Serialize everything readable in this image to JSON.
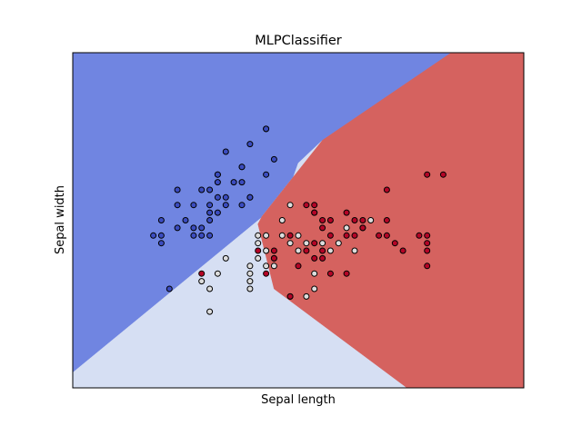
{
  "chart_data": {
    "type": "scatter",
    "title": "MLPClassifier",
    "xlabel": "Sepal length",
    "ylabel": "Sepal width",
    "xlim": [
      3.3,
      8.9
    ],
    "ylim": [
      1.0,
      5.4
    ],
    "xticks": "hidden",
    "yticks": "hidden",
    "grid": false,
    "legend": "none",
    "colors": {
      "region_class_0": "#7085e1",
      "region_class_1": "#d6dff3",
      "region_class_2": "#d5625f",
      "point_class_0": "#3b4cc0",
      "point_class_1": "#dddddd",
      "point_class_2": "#b40426",
      "point_edge": "#000000"
    },
    "decision_regions": [
      {
        "class": 0,
        "polygon": [
          [
            3.3,
            1.2
          ],
          [
            3.3,
            5.4
          ],
          [
            8.0,
            5.4
          ],
          [
            6.4,
            4.25
          ],
          [
            6.1,
            3.95
          ],
          [
            5.95,
            3.5
          ]
        ]
      },
      {
        "class": 1,
        "polygon": [
          [
            3.3,
            1.0
          ],
          [
            3.3,
            1.2
          ],
          [
            5.95,
            3.5
          ],
          [
            6.1,
            3.95
          ],
          [
            6.4,
            4.25
          ],
          [
            5.65,
            3.25
          ],
          [
            5.6,
            3.15
          ],
          [
            5.8,
            2.3
          ],
          [
            7.45,
            1.0
          ]
        ]
      },
      {
        "class": 2,
        "polygon": [
          [
            5.6,
            3.15
          ],
          [
            5.65,
            3.25
          ],
          [
            6.4,
            4.25
          ],
          [
            8.0,
            5.4
          ],
          [
            8.9,
            5.4
          ],
          [
            8.9,
            1.0
          ],
          [
            7.45,
            1.0
          ],
          [
            5.8,
            2.3
          ]
        ]
      }
    ],
    "series": [
      {
        "class": 0,
        "points": [
          [
            4.3,
            3.0
          ],
          [
            4.4,
            3.2
          ],
          [
            4.4,
            2.9
          ],
          [
            4.5,
            2.3
          ],
          [
            4.6,
            3.1
          ],
          [
            4.6,
            3.4
          ],
          [
            4.6,
            3.6
          ],
          [
            4.7,
            3.2
          ],
          [
            4.8,
            3.4
          ],
          [
            4.8,
            3.0
          ],
          [
            4.8,
            3.1
          ],
          [
            4.9,
            3.0
          ],
          [
            4.9,
            3.1
          ],
          [
            5.0,
            3.6
          ],
          [
            5.0,
            3.4
          ],
          [
            5.0,
            3.0
          ],
          [
            5.0,
            3.2
          ],
          [
            5.0,
            3.3
          ],
          [
            5.1,
            3.5
          ],
          [
            5.1,
            3.8
          ],
          [
            5.1,
            3.7
          ],
          [
            5.1,
            3.3
          ],
          [
            5.2,
            3.5
          ],
          [
            5.2,
            3.4
          ],
          [
            5.2,
            4.1
          ],
          [
            5.3,
            3.7
          ],
          [
            5.4,
            3.9
          ],
          [
            5.4,
            3.7
          ],
          [
            5.4,
            3.4
          ],
          [
            5.5,
            4.2
          ],
          [
            5.5,
            3.5
          ],
          [
            5.7,
            4.4
          ],
          [
            5.7,
            3.8
          ],
          [
            5.8,
            4.0
          ],
          [
            5.7,
            4.4
          ],
          [
            5.4,
            3.9
          ],
          [
            5.5,
            3.5
          ],
          [
            5.1,
            3.8
          ],
          [
            4.9,
            3.6
          ],
          [
            4.4,
            3.0
          ]
        ]
      },
      {
        "class": 1,
        "points": [
          [
            4.9,
            2.4
          ],
          [
            5.0,
            2.3
          ],
          [
            5.0,
            2.0
          ],
          [
            5.1,
            2.5
          ],
          [
            5.2,
            2.7
          ],
          [
            5.5,
            2.3
          ],
          [
            5.5,
            2.4
          ],
          [
            5.5,
            2.5
          ],
          [
            5.5,
            2.6
          ],
          [
            5.6,
            2.9
          ],
          [
            5.6,
            3.0
          ],
          [
            5.6,
            2.7
          ],
          [
            5.7,
            2.8
          ],
          [
            5.7,
            2.6
          ],
          [
            5.7,
            3.0
          ],
          [
            5.8,
            2.7
          ],
          [
            5.8,
            2.6
          ],
          [
            5.9,
            3.0
          ],
          [
            5.9,
            3.2
          ],
          [
            6.0,
            2.2
          ],
          [
            6.0,
            2.9
          ],
          [
            6.0,
            3.4
          ],
          [
            6.1,
            2.8
          ],
          [
            6.1,
            3.0
          ],
          [
            6.2,
            2.2
          ],
          [
            6.2,
            2.9
          ],
          [
            6.3,
            2.3
          ],
          [
            6.3,
            2.5
          ],
          [
            6.3,
            3.3
          ],
          [
            6.4,
            2.9
          ],
          [
            6.5,
            2.8
          ],
          [
            6.6,
            2.9
          ],
          [
            6.7,
            3.1
          ],
          [
            6.8,
            2.8
          ],
          [
            6.9,
            3.1
          ],
          [
            7.0,
            3.2
          ]
        ]
      },
      {
        "class": 2,
        "points": [
          [
            4.9,
            2.5
          ],
          [
            5.6,
            2.8
          ],
          [
            5.7,
            2.5
          ],
          [
            5.8,
            2.7
          ],
          [
            5.8,
            2.8
          ],
          [
            6.0,
            2.2
          ],
          [
            6.0,
            3.0
          ],
          [
            6.1,
            2.6
          ],
          [
            6.2,
            2.8
          ],
          [
            6.2,
            3.4
          ],
          [
            6.3,
            2.7
          ],
          [
            6.3,
            2.9
          ],
          [
            6.3,
            3.3
          ],
          [
            6.3,
            3.4
          ],
          [
            6.4,
            2.8
          ],
          [
            6.4,
            3.1
          ],
          [
            6.4,
            3.2
          ],
          [
            6.4,
            2.7
          ],
          [
            6.5,
            3.0
          ],
          [
            6.5,
            3.2
          ],
          [
            6.7,
            3.0
          ],
          [
            6.7,
            3.3
          ],
          [
            6.8,
            3.0
          ],
          [
            6.8,
            3.2
          ],
          [
            6.9,
            3.1
          ],
          [
            6.9,
            3.2
          ],
          [
            7.1,
            3.0
          ],
          [
            7.2,
            3.0
          ],
          [
            7.2,
            3.2
          ],
          [
            7.2,
            3.6
          ],
          [
            7.3,
            2.9
          ],
          [
            7.4,
            2.8
          ],
          [
            7.6,
            3.0
          ],
          [
            7.7,
            3.0
          ],
          [
            7.7,
            2.8
          ],
          [
            7.7,
            3.8
          ],
          [
            7.7,
            2.6
          ],
          [
            7.9,
            3.8
          ],
          [
            6.5,
            2.5
          ],
          [
            6.7,
            2.5
          ],
          [
            7.7,
            2.9
          ]
        ]
      }
    ]
  }
}
